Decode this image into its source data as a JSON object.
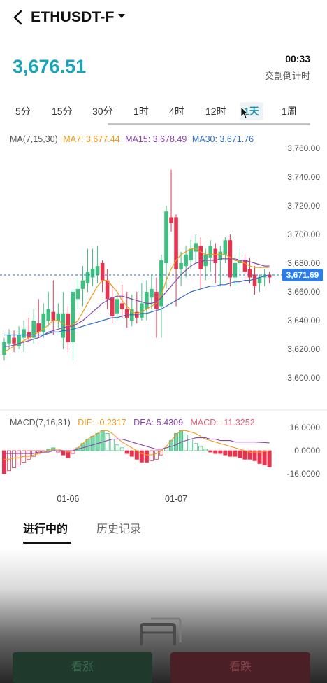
{
  "header": {
    "symbol": "ETHUSDT-F"
  },
  "price": "3,676.51",
  "countdown": {
    "time": "00:33",
    "label": "交割倒计时"
  },
  "intervals": [
    "5分",
    "15分",
    "30分",
    "1时",
    "4时",
    "12时",
    "1天",
    "1周"
  ],
  "active_interval": "1天",
  "ma_legend": {
    "label": "MA(7,15,30)",
    "ma7": "MA7: 3,677.44",
    "ma15": "MA15: 3,678.49",
    "ma30": "MA30: 3,671.76"
  },
  "macd_legend": {
    "label": "MACD(7,16,31)",
    "dif": "DIF: -0.2317",
    "dea": "DEA: 5.4309",
    "macd": "MACD: -11.3252"
  },
  "colors": {
    "up": "#3dbf7f",
    "down": "#e8334f",
    "ma7": "#f29a1d",
    "ma15": "#8a44b0",
    "ma30": "#2e6fc7",
    "accent": "#17a3b8"
  },
  "chart_data": [
    {
      "type": "candlestick",
      "ylim": [
        3600,
        3760
      ],
      "y_ticks": [
        "3,760.00",
        "3,740.00",
        "3,720.00",
        "3,700.00",
        "3,680.00",
        "3,660.00",
        "3,640.00",
        "3,620.00",
        "3,600.00"
      ],
      "y_tick_values": [
        3760,
        3740,
        3720,
        3700,
        3680,
        3660,
        3640,
        3620,
        3600
      ],
      "x_ticks": [
        {
          "index": 13,
          "label": "01-06"
        },
        {
          "index": 35,
          "label": "01-07"
        }
      ],
      "last_price_label": "3,671.69",
      "last_price": 3671.69,
      "candles": [
        [
          3616,
          3625,
          3612,
          3628
        ],
        [
          3624,
          3630,
          3620,
          3634
        ],
        [
          3628,
          3624,
          3618,
          3633
        ],
        [
          3622,
          3630,
          3620,
          3636
        ],
        [
          3628,
          3634,
          3618,
          3640
        ],
        [
          3632,
          3628,
          3625,
          3642
        ],
        [
          3628,
          3640,
          3624,
          3648
        ],
        [
          3638,
          3632,
          3628,
          3655
        ],
        [
          3632,
          3645,
          3628,
          3652
        ],
        [
          3640,
          3648,
          3636,
          3660
        ],
        [
          3646,
          3640,
          3630,
          3668
        ],
        [
          3640,
          3645,
          3635,
          3652
        ],
        [
          3628,
          3645,
          3620,
          3660
        ],
        [
          3645,
          3625,
          3618,
          3650
        ],
        [
          3625,
          3660,
          3612,
          3662
        ],
        [
          3655,
          3662,
          3648,
          3670
        ],
        [
          3662,
          3668,
          3650,
          3678
        ],
        [
          3666,
          3674,
          3660,
          3690
        ],
        [
          3670,
          3676,
          3664,
          3690
        ],
        [
          3672,
          3678,
          3666,
          3692
        ],
        [
          3680,
          3668,
          3660,
          3682
        ],
        [
          3668,
          3655,
          3648,
          3676
        ],
        [
          3656,
          3643,
          3638,
          3662
        ],
        [
          3645,
          3655,
          3640,
          3660
        ],
        [
          3652,
          3648,
          3642,
          3665
        ],
        [
          3648,
          3642,
          3635,
          3660
        ],
        [
          3640,
          3648,
          3636,
          3658
        ],
        [
          3646,
          3642,
          3638,
          3660
        ],
        [
          3642,
          3652,
          3640,
          3666
        ],
        [
          3648,
          3660,
          3640,
          3668
        ],
        [
          3656,
          3662,
          3648,
          3672
        ],
        [
          3660,
          3648,
          3628,
          3670
        ],
        [
          3650,
          3682,
          3628,
          3686
        ],
        [
          3680,
          3716,
          3662,
          3720
        ],
        [
          3712,
          3708,
          3702,
          3745
        ],
        [
          3712,
          3676,
          3650,
          3714
        ],
        [
          3676,
          3680,
          3664,
          3688
        ],
        [
          3678,
          3686,
          3670,
          3692
        ],
        [
          3682,
          3690,
          3676,
          3696
        ],
        [
          3688,
          3694,
          3680,
          3700
        ],
        [
          3692,
          3676,
          3662,
          3698
        ],
        [
          3678,
          3686,
          3668,
          3690
        ],
        [
          3684,
          3692,
          3674,
          3696
        ],
        [
          3690,
          3680,
          3666,
          3694
        ],
        [
          3682,
          3688,
          3664,
          3692
        ],
        [
          3686,
          3696,
          3680,
          3698
        ],
        [
          3696,
          3670,
          3664,
          3700
        ],
        [
          3670,
          3680,
          3664,
          3686
        ],
        [
          3680,
          3682,
          3672,
          3690
        ],
        [
          3682,
          3674,
          3668,
          3686
        ],
        [
          3676,
          3670,
          3666,
          3684
        ],
        [
          3672,
          3664,
          3658,
          3678
        ],
        [
          3666,
          3670,
          3660,
          3672
        ],
        [
          3670,
          3672,
          3664,
          3676
        ],
        [
          3672,
          3670,
          3666,
          3674
        ]
      ],
      "series": [
        {
          "name": "MA7",
          "values": [
            3618,
            3620,
            3622,
            3624,
            3626,
            3628,
            3630,
            3632,
            3634,
            3637,
            3640,
            3640,
            3638,
            3636,
            3637,
            3640,
            3646,
            3652,
            3658,
            3664,
            3668,
            3668,
            3664,
            3660,
            3654,
            3650,
            3646,
            3645,
            3646,
            3648,
            3650,
            3652,
            3658,
            3668,
            3676,
            3682,
            3686,
            3688,
            3690,
            3690,
            3688,
            3686,
            3686,
            3686,
            3686,
            3686,
            3684,
            3682,
            3681,
            3680,
            3678,
            3677,
            3677,
            3677,
            3677
          ]
        },
        {
          "name": "MA15",
          "values": [
            3622,
            3622,
            3623,
            3624,
            3625,
            3626,
            3627,
            3628,
            3630,
            3632,
            3633,
            3634,
            3635,
            3636,
            3636,
            3638,
            3640,
            3643,
            3646,
            3649,
            3652,
            3654,
            3656,
            3657,
            3657,
            3656,
            3655,
            3654,
            3653,
            3652,
            3652,
            3653,
            3656,
            3660,
            3664,
            3668,
            3672,
            3675,
            3678,
            3680,
            3681,
            3682,
            3682,
            3682,
            3683,
            3683,
            3683,
            3683,
            3682,
            3682,
            3681,
            3680,
            3679,
            3678,
            3678
          ]
        },
        {
          "name": "MA30",
          "values": [
            3630,
            3630,
            3630,
            3630,
            3630,
            3630,
            3630,
            3630,
            3630,
            3631,
            3632,
            3632,
            3633,
            3633,
            3634,
            3635,
            3636,
            3637,
            3638,
            3639,
            3640,
            3641,
            3642,
            3642,
            3643,
            3644,
            3644,
            3644,
            3645,
            3645,
            3646,
            3647,
            3648,
            3650,
            3652,
            3654,
            3656,
            3658,
            3660,
            3661,
            3662,
            3663,
            3664,
            3664,
            3665,
            3665,
            3666,
            3667,
            3667,
            3668,
            3668,
            3669,
            3670,
            3671,
            3671.76
          ]
        }
      ]
    },
    {
      "type": "macd",
      "ylim": [
        -20,
        20
      ],
      "y_ticks": [
        "16.0000",
        "0.0000",
        "-16.0000"
      ],
      "y_tick_values": [
        16,
        0,
        -16
      ],
      "histogram": [
        -16,
        -14,
        -12,
        -10,
        -8,
        -6,
        -4,
        -2,
        -1,
        1,
        2,
        -1,
        -3,
        -5,
        -2,
        2,
        5,
        8,
        10,
        12,
        14,
        12,
        8,
        4,
        2,
        -2,
        -4,
        -6,
        -8,
        -8,
        -7,
        -6,
        -3,
        2,
        7,
        12,
        14,
        11,
        8,
        5,
        3,
        1,
        -1,
        -2,
        -2,
        -3,
        -4,
        -4,
        -5,
        -6,
        -6,
        -7,
        -9,
        -10,
        -11.3252
      ],
      "series": [
        {
          "name": "DIF",
          "values": [
            -6,
            -6,
            -5,
            -5,
            -4,
            -4,
            -3,
            -2,
            -1,
            0,
            1,
            1,
            0,
            -1,
            0,
            2,
            5,
            8,
            10,
            12,
            14,
            14,
            12,
            9,
            6,
            4,
            2,
            0,
            -2,
            -3,
            -3,
            -2,
            0,
            3,
            7,
            11,
            14,
            14,
            13,
            12,
            10,
            8,
            7,
            6,
            5,
            4,
            3,
            2,
            1,
            0,
            -1,
            -1,
            -1,
            -0.5,
            -0.2317
          ]
        },
        {
          "name": "DEA",
          "values": [
            -2,
            -2,
            -2,
            -2,
            -2,
            -2,
            -2,
            -1,
            -1,
            -1,
            0,
            0,
            0,
            0,
            0,
            1,
            2,
            3,
            4,
            5,
            6,
            7,
            8,
            8,
            8,
            7,
            6,
            5,
            4,
            3,
            2,
            1,
            1,
            2,
            3,
            4,
            6,
            7,
            8,
            9,
            9,
            9,
            8,
            8,
            7,
            7,
            7,
            6,
            6,
            6,
            6,
            6,
            5.8,
            5.6,
            5.4309
          ]
        }
      ]
    }
  ],
  "list_tabs": {
    "active": "进行中的",
    "inactive": "历史记录"
  },
  "buttons": {
    "long": "看涨",
    "short": "看跌"
  }
}
